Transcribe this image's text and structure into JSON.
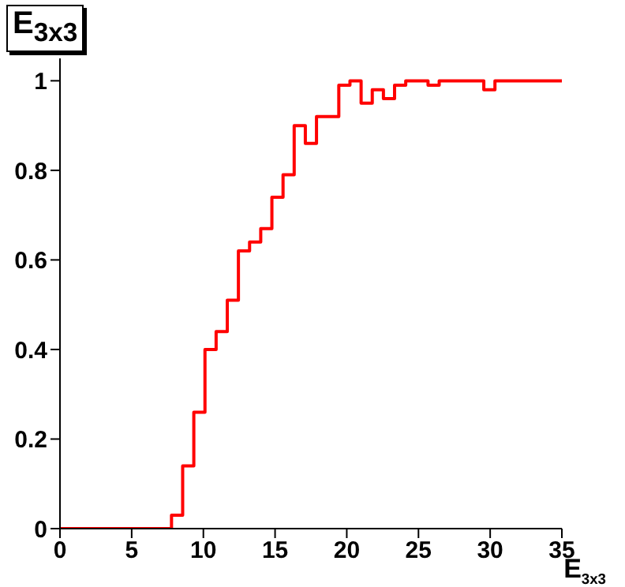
{
  "chart_data": {
    "type": "histogram",
    "title": "E$_{3x3}$",
    "xlabel": "E$_{3x3}$",
    "bins": [
      0,
      0.778,
      1.556,
      2.333,
      3.111,
      3.889,
      4.667,
      5.444,
      6.222,
      7,
      7.778,
      8.556,
      9.333,
      10.111,
      10.889,
      11.667,
      12.444,
      13.222,
      14,
      14.778,
      15.556,
      16.333,
      17.111,
      17.889,
      18.667,
      19.444,
      20.222,
      21,
      21.778,
      22.556,
      23.333,
      24.111,
      24.889,
      25.667,
      26.444,
      27.222,
      28,
      28.778,
      29.556,
      30.333,
      31.111,
      31.889,
      32.667,
      33.444,
      34.222,
      35
    ],
    "values": [
      0,
      0,
      0,
      0,
      0,
      0,
      0,
      0,
      0,
      0,
      0.03,
      0.14,
      0.26,
      0.4,
      0.44,
      0.51,
      0.62,
      0.64,
      0.67,
      0.74,
      0.79,
      0.9,
      0.86,
      0.92,
      0.92,
      0.99,
      1,
      0.95,
      0.98,
      0.96,
      0.99,
      1,
      1,
      0.99,
      1,
      1,
      1,
      1,
      0.98,
      1,
      1,
      1,
      1,
      1,
      1
    ],
    "color": "#ff0000",
    "xlim": [
      0,
      35
    ],
    "xticks": [
      0,
      5,
      10,
      15,
      20,
      25,
      30,
      35
    ],
    "ylim": [
      0,
      1.05
    ],
    "yticks": [
      0,
      0.2,
      0.4,
      0.6,
      0.8,
      1
    ],
    "grid": false,
    "legend": false
  }
}
